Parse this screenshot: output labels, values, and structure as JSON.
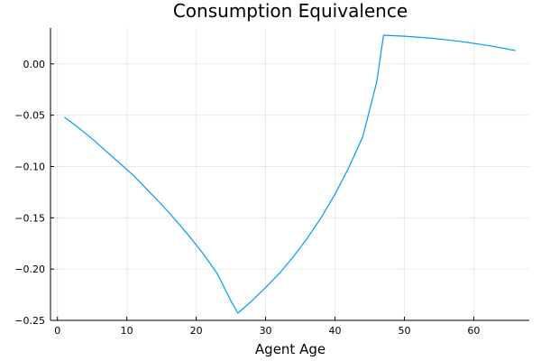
{
  "chart_data": {
    "type": "line",
    "title": "Consumption Equivalence",
    "xlabel": "Agent Age",
    "ylabel": "",
    "xlim": [
      -1,
      68
    ],
    "ylim": [
      -0.25,
      0.035
    ],
    "xticks": [
      0,
      10,
      20,
      30,
      40,
      50,
      60
    ],
    "yticks": [
      0.0,
      -0.05,
      -0.1,
      -0.15,
      -0.2,
      -0.25
    ],
    "ytick_labels": [
      "0.00",
      "−0.05",
      "−0.10",
      "−0.15",
      "−0.20",
      "−0.25"
    ],
    "grid": true,
    "legend": "none",
    "colors": {
      "line": "#009AFA",
      "axis": "#000000",
      "background": "#FFFFFF"
    },
    "series": [
      {
        "x": [
          1,
          3,
          5,
          7,
          9,
          11,
          13,
          15,
          17,
          19,
          21,
          23,
          25,
          26,
          28,
          30,
          32,
          34,
          36,
          38,
          40,
          42,
          44,
          46,
          47,
          50,
          54,
          58,
          62,
          66
        ],
        "y": [
          -0.052,
          -0.062,
          -0.073,
          -0.085,
          -0.097,
          -0.109,
          -0.123,
          -0.137,
          -0.152,
          -0.168,
          -0.185,
          -0.204,
          -0.231,
          -0.243,
          -0.231,
          -0.218,
          -0.204,
          -0.188,
          -0.17,
          -0.15,
          -0.127,
          -0.101,
          -0.071,
          -0.018,
          0.028,
          0.027,
          0.025,
          0.022,
          0.018,
          0.013
        ]
      }
    ]
  }
}
